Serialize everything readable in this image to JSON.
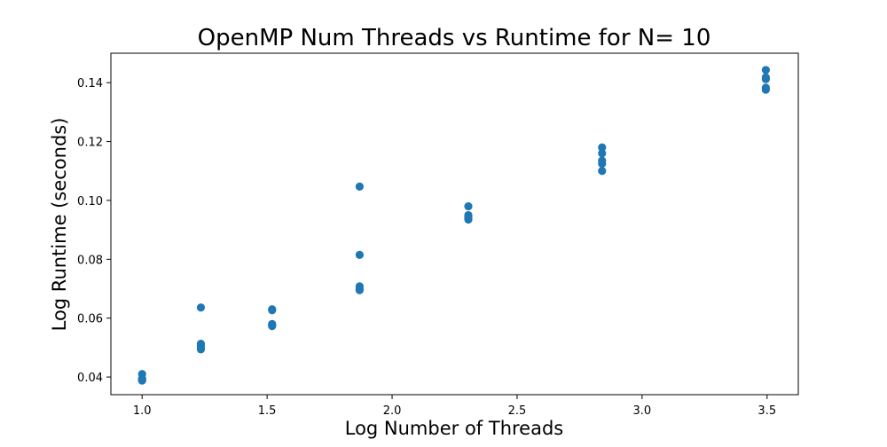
{
  "chart_data": {
    "type": "scatter",
    "title": "OpenMP Num Threads vs Runtime for N= 10",
    "xlabel": "Log Number of Threads",
    "ylabel": "Log Runtime (seconds)",
    "xlim": [
      0.875,
      3.625
    ],
    "ylim": [
      0.034,
      0.15
    ],
    "xticks": [
      "1.0",
      "1.5",
      "2.0",
      "2.5",
      "3.0",
      "3.5"
    ],
    "yticks": [
      "0.04",
      "0.06",
      "0.08",
      "0.10",
      "0.12",
      "0.14"
    ],
    "grid": false,
    "marker_color": "#1f77b4",
    "points": [
      {
        "x": 1.0,
        "y": 0.041
      },
      {
        "x": 1.0,
        "y": 0.0395
      },
      {
        "x": 1.0,
        "y": 0.039
      },
      {
        "x": 1.0,
        "y": 0.0388
      },
      {
        "x": 1.0,
        "y": 0.0392
      },
      {
        "x": 1.235,
        "y": 0.0636
      },
      {
        "x": 1.235,
        "y": 0.0513
      },
      {
        "x": 1.235,
        "y": 0.0507
      },
      {
        "x": 1.235,
        "y": 0.05
      },
      {
        "x": 1.235,
        "y": 0.0494
      },
      {
        "x": 1.52,
        "y": 0.063
      },
      {
        "x": 1.52,
        "y": 0.0627
      },
      {
        "x": 1.52,
        "y": 0.058
      },
      {
        "x": 1.52,
        "y": 0.0577
      },
      {
        "x": 1.52,
        "y": 0.0573
      },
      {
        "x": 1.87,
        "y": 0.1047
      },
      {
        "x": 1.87,
        "y": 0.0815
      },
      {
        "x": 1.87,
        "y": 0.0708
      },
      {
        "x": 1.87,
        "y": 0.07
      },
      {
        "x": 1.87,
        "y": 0.0695
      },
      {
        "x": 2.305,
        "y": 0.098
      },
      {
        "x": 2.305,
        "y": 0.095
      },
      {
        "x": 2.305,
        "y": 0.0945
      },
      {
        "x": 2.305,
        "y": 0.094
      },
      {
        "x": 2.305,
        "y": 0.0935
      },
      {
        "x": 2.84,
        "y": 0.118
      },
      {
        "x": 2.84,
        "y": 0.116
      },
      {
        "x": 2.84,
        "y": 0.1135
      },
      {
        "x": 2.84,
        "y": 0.1125
      },
      {
        "x": 2.84,
        "y": 0.11
      },
      {
        "x": 3.495,
        "y": 0.1443
      },
      {
        "x": 3.495,
        "y": 0.1418
      },
      {
        "x": 3.495,
        "y": 0.1412
      },
      {
        "x": 3.495,
        "y": 0.1383
      },
      {
        "x": 3.495,
        "y": 0.1376
      }
    ]
  }
}
